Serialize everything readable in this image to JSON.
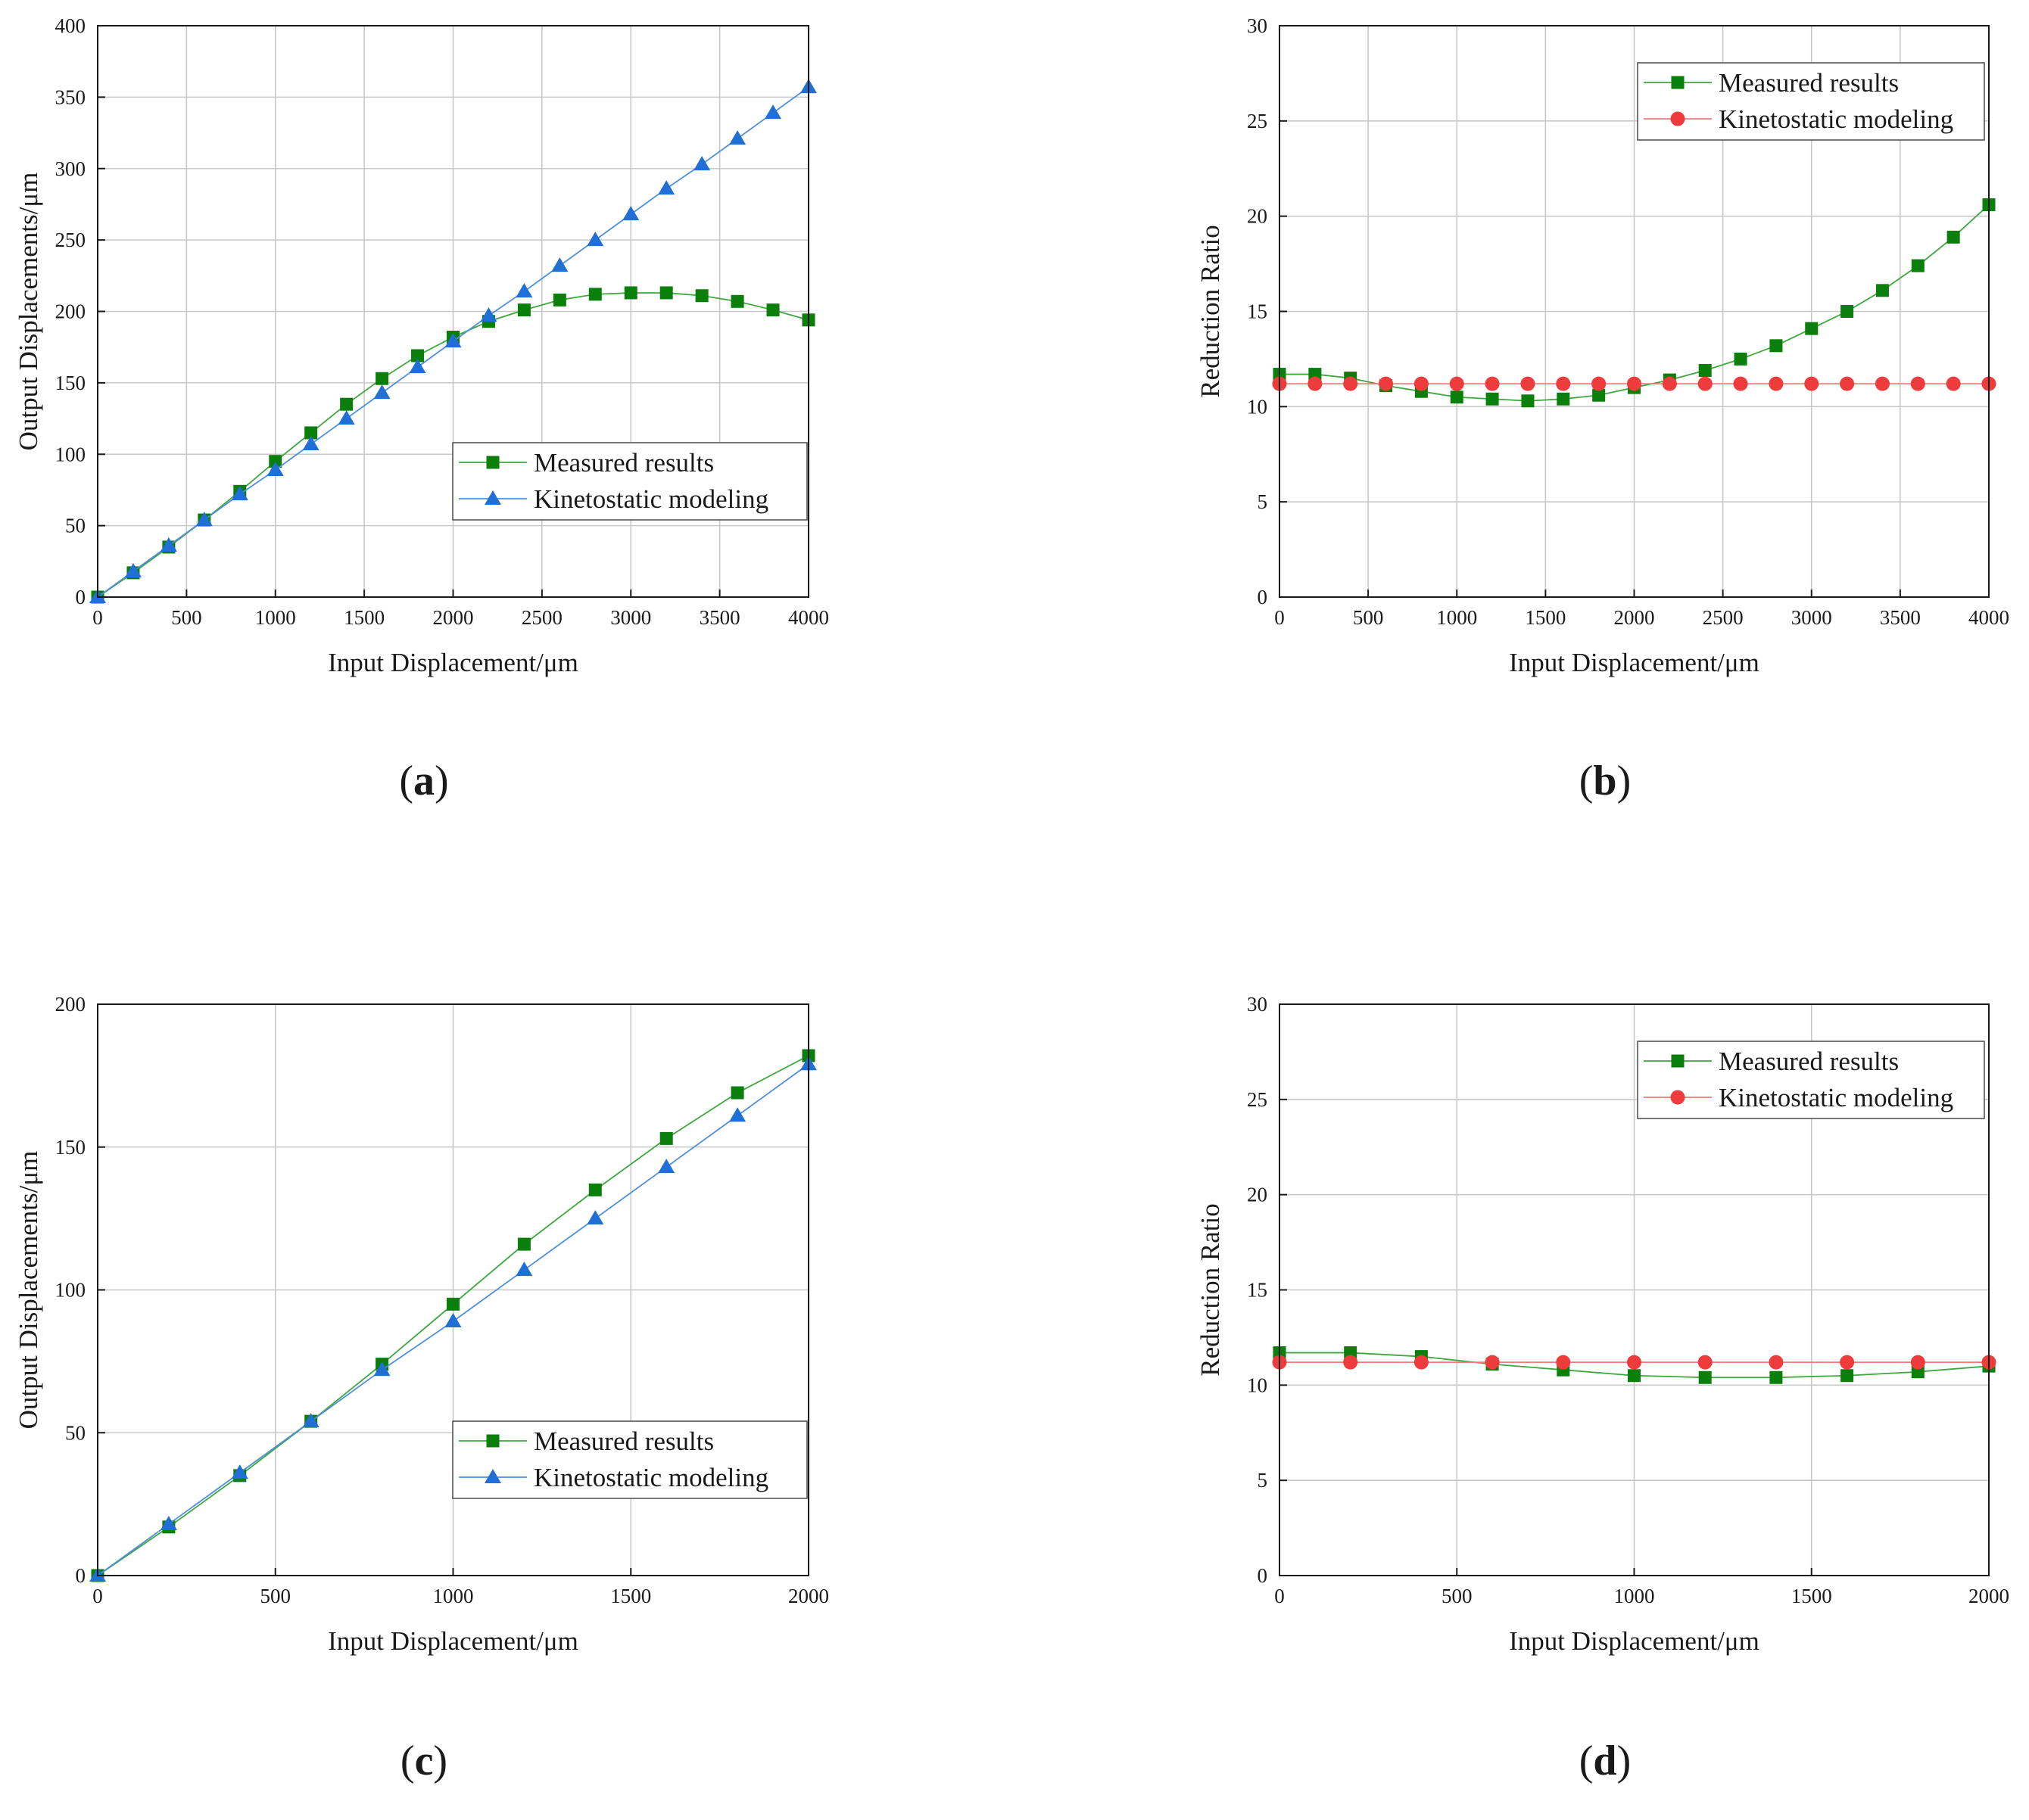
{
  "colors": {
    "measured": "#0b7f0b",
    "measured_line": "#3fa73f",
    "kinetostatic_triangle": "#1f6fd6",
    "kinetostatic_triangle_line": "#4f8fde",
    "kinetostatic_circle": "#ee3b3b",
    "kinetostatic_circle_line": "#f07c7c"
  },
  "chart_data": [
    {
      "id": "a",
      "type": "line",
      "panel_label_open": "(",
      "panel_label_letter": "a",
      "panel_label_close": ")",
      "xlabel": "Input Displacement/μm",
      "ylabel": "Output Displacements/μm",
      "xlim": [
        0,
        4000
      ],
      "ylim": [
        0,
        400
      ],
      "xticks": [
        0,
        500,
        1000,
        1500,
        2000,
        2500,
        3000,
        3500,
        4000
      ],
      "yticks": [
        0,
        50,
        100,
        150,
        200,
        250,
        300,
        350,
        400
      ],
      "grid": true,
      "legend_position": "bottom-right",
      "x": [
        0,
        200,
        400,
        600,
        800,
        1000,
        1200,
        1400,
        1600,
        1800,
        2000,
        2200,
        2400,
        2600,
        2800,
        3000,
        3200,
        3400,
        3600,
        3800,
        4000
      ],
      "series": [
        {
          "name": "Measured results",
          "marker": "square",
          "color_key": "measured",
          "values": [
            0,
            17,
            35,
            54,
            74,
            95,
            115,
            135,
            153,
            169,
            182,
            193,
            201,
            208,
            212,
            213,
            213,
            211,
            207,
            201,
            194
          ]
        },
        {
          "name": "Kinetostatic modeling",
          "marker": "triangle",
          "color_key": "kinetostatic_triangle",
          "values": [
            0,
            18,
            36,
            54,
            72,
            89,
            107,
            125,
            143,
            161,
            179,
            197,
            214,
            232,
            250,
            268,
            286,
            303,
            321,
            339,
            357
          ]
        }
      ]
    },
    {
      "id": "b",
      "type": "line",
      "panel_label_open": "(",
      "panel_label_letter": "b",
      "panel_label_close": ")",
      "xlabel": "Input Displacement/μm",
      "ylabel": "Reduction Ratio",
      "xlim": [
        0,
        4000
      ],
      "ylim": [
        0,
        30
      ],
      "xticks": [
        0,
        500,
        1000,
        1500,
        2000,
        2500,
        3000,
        3500,
        4000
      ],
      "yticks": [
        0,
        5,
        10,
        15,
        20,
        25,
        30
      ],
      "grid": true,
      "legend_position": "top-right",
      "x": [
        0,
        200,
        400,
        600,
        800,
        1000,
        1200,
        1400,
        1600,
        1800,
        2000,
        2200,
        2400,
        2600,
        2800,
        3000,
        3200,
        3400,
        3600,
        3800,
        4000
      ],
      "series": [
        {
          "name": "Measured results",
          "marker": "square",
          "color_key": "measured",
          "values": [
            11.7,
            11.7,
            11.5,
            11.1,
            10.8,
            10.5,
            10.4,
            10.3,
            10.4,
            10.6,
            11.0,
            11.4,
            11.9,
            12.5,
            13.2,
            14.1,
            15.0,
            16.1,
            17.4,
            18.9,
            20.6
          ]
        },
        {
          "name": "Kinetostatic modeling",
          "marker": "circle",
          "color_key": "kinetostatic_circle",
          "values": [
            11.2,
            11.2,
            11.2,
            11.2,
            11.2,
            11.2,
            11.2,
            11.2,
            11.2,
            11.2,
            11.2,
            11.2,
            11.2,
            11.2,
            11.2,
            11.2,
            11.2,
            11.2,
            11.2,
            11.2,
            11.2
          ]
        }
      ]
    },
    {
      "id": "c",
      "type": "line",
      "panel_label_open": "(",
      "panel_label_letter": "c",
      "panel_label_close": ")",
      "xlabel": "Input Displacement/μm",
      "ylabel": "Output Displacements/μm",
      "xlim": [
        0,
        2000
      ],
      "ylim": [
        0,
        200
      ],
      "xticks": [
        0,
        500,
        1000,
        1500,
        2000
      ],
      "yticks": [
        0,
        50,
        100,
        150,
        200
      ],
      "grid": true,
      "legend_position": "bottom-right",
      "x": [
        0,
        200,
        400,
        600,
        800,
        1000,
        1200,
        1400,
        1600,
        1800,
        2000
      ],
      "series": [
        {
          "name": "Measured results",
          "marker": "square",
          "color_key": "measured",
          "values": [
            0,
            17,
            35,
            54,
            74,
            95,
            116,
            135,
            153,
            169,
            182
          ]
        },
        {
          "name": "Kinetostatic modeling",
          "marker": "triangle",
          "color_key": "kinetostatic_triangle",
          "values": [
            0,
            18,
            36,
            54,
            72,
            89,
            107,
            125,
            143,
            161,
            179
          ]
        }
      ]
    },
    {
      "id": "d",
      "type": "line",
      "panel_label_open": "(",
      "panel_label_letter": "d",
      "panel_label_close": ")",
      "xlabel": "Input Displacement/μm",
      "ylabel": "Reduction Ratio",
      "xlim": [
        0,
        2000
      ],
      "ylim": [
        0,
        30
      ],
      "xticks": [
        0,
        500,
        1000,
        1500,
        2000
      ],
      "yticks": [
        0,
        5,
        10,
        15,
        20,
        25,
        30
      ],
      "grid": true,
      "legend_position": "top-right",
      "x": [
        0,
        200,
        400,
        600,
        800,
        1000,
        1200,
        1400,
        1600,
        1800,
        2000
      ],
      "series": [
        {
          "name": "Measured results",
          "marker": "square",
          "color_key": "measured",
          "values": [
            11.7,
            11.7,
            11.5,
            11.1,
            10.8,
            10.5,
            10.4,
            10.4,
            10.5,
            10.7,
            11.0
          ]
        },
        {
          "name": "Kinetostatic modeling",
          "marker": "circle",
          "color_key": "kinetostatic_circle",
          "values": [
            11.2,
            11.2,
            11.2,
            11.2,
            11.2,
            11.2,
            11.2,
            11.2,
            11.2,
            11.2,
            11.2
          ]
        }
      ]
    }
  ]
}
